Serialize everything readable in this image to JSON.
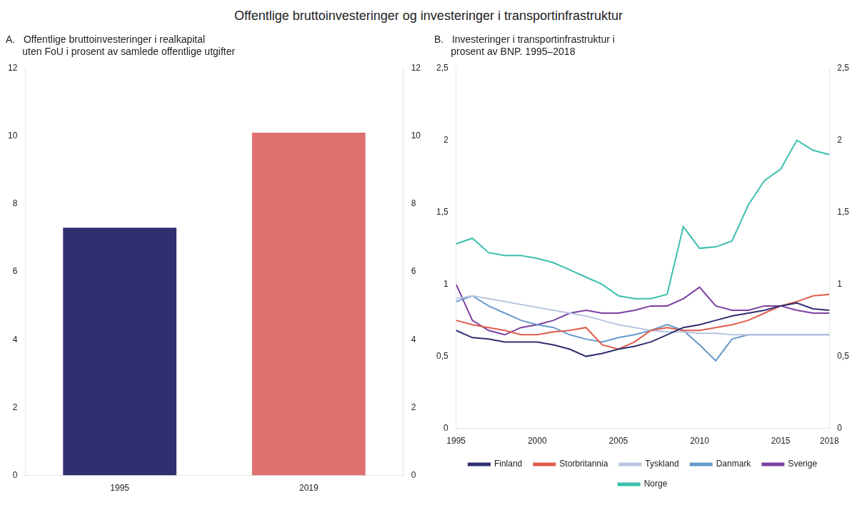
{
  "title": "Offentlige bruttoinvesteringer og investeringer i transportinfrastruktur",
  "chart_data": [
    {
      "type": "bar",
      "title": "A.   Offentlige bruttoinvesteringer i realkapital\n      uten FoU i prosent av samlede offentlige utgifter",
      "categories": [
        "1995",
        "2019"
      ],
      "values": [
        7.3,
        10.1
      ],
      "colors": [
        "#2e3070",
        "#e07070"
      ],
      "ylim": [
        0,
        12
      ],
      "yticks": [
        0,
        2,
        4,
        6,
        8,
        10,
        12
      ],
      "y2lim": [
        0,
        12
      ],
      "y2ticks": [
        0,
        2,
        4,
        6,
        8,
        10,
        12
      ],
      "grid": false
    },
    {
      "type": "line",
      "title": "B.   Investeringer i transportinfrastruktur i\n      prosent av BNP. 1995–2018",
      "x": [
        1995,
        1996,
        1997,
        1998,
        1999,
        2000,
        2001,
        2002,
        2003,
        2004,
        2005,
        2006,
        2007,
        2008,
        2009,
        2010,
        2011,
        2012,
        2013,
        2014,
        2015,
        2016,
        2017,
        2018
      ],
      "series": [
        {
          "name": "Finland",
          "color": "#2e3070",
          "values": [
            0.68,
            0.63,
            0.62,
            0.6,
            0.6,
            0.6,
            0.58,
            0.55,
            0.5,
            0.52,
            0.55,
            0.57,
            0.6,
            0.65,
            0.7,
            0.72,
            0.75,
            0.78,
            0.8,
            0.82,
            0.85,
            0.87,
            0.83,
            0.82
          ]
        },
        {
          "name": "Storbritannia",
          "color": "#e05c4b",
          "values": [
            0.75,
            0.72,
            0.7,
            0.68,
            0.65,
            0.65,
            0.67,
            0.68,
            0.7,
            0.58,
            0.55,
            0.6,
            0.68,
            0.7,
            0.68,
            0.68,
            0.7,
            0.72,
            0.75,
            0.8,
            0.85,
            0.88,
            0.92,
            0.93
          ]
        },
        {
          "name": "Tyskland",
          "color": "#b8c4e0",
          "values": [
            0.9,
            0.92,
            0.9,
            0.88,
            0.86,
            0.84,
            0.82,
            0.8,
            0.78,
            0.75,
            0.72,
            0.7,
            0.68,
            0.67,
            0.67,
            0.66,
            0.66,
            0.65,
            0.65,
            0.65,
            0.65,
            0.65,
            0.65,
            0.65
          ]
        },
        {
          "name": "Danmark",
          "color": "#6699cc",
          "values": [
            0.88,
            0.92,
            0.85,
            0.8,
            0.75,
            0.72,
            0.7,
            0.65,
            0.62,
            0.6,
            0.63,
            0.65,
            0.68,
            0.72,
            0.68,
            0.58,
            0.47,
            0.62,
            0.65,
            0.65,
            0.65,
            0.65,
            0.65,
            0.65
          ]
        },
        {
          "name": "Sverige",
          "color": "#7b3fa0",
          "values": [
            1.0,
            0.75,
            0.68,
            0.65,
            0.7,
            0.72,
            0.75,
            0.8,
            0.82,
            0.8,
            0.8,
            0.82,
            0.85,
            0.85,
            0.9,
            0.98,
            0.85,
            0.82,
            0.82,
            0.85,
            0.85,
            0.82,
            0.8,
            0.8
          ]
        },
        {
          "name": "Norge",
          "color": "#3bbfad",
          "values": [
            1.28,
            1.32,
            1.22,
            1.2,
            1.2,
            1.18,
            1.15,
            1.1,
            1.05,
            1.0,
            0.92,
            0.9,
            0.9,
            0.93,
            1.4,
            1.25,
            1.26,
            1.3,
            1.55,
            1.72,
            1.8,
            2.0,
            1.93,
            1.9
          ]
        }
      ],
      "xlim": [
        1995,
        2018
      ],
      "xticks": [
        1995,
        2000,
        2005,
        2010,
        2015,
        2018
      ],
      "ylim": [
        0,
        2.5
      ],
      "yticks": [
        0,
        {
          "value": 0.5,
          "label": "0,5"
        },
        1,
        {
          "value": 1.5,
          "label": "1,5"
        },
        2,
        {
          "value": 2.5,
          "label": "2,5"
        }
      ],
      "y2lim": [
        0,
        2.5
      ],
      "y2ticks": [
        0,
        {
          "value": 0.5,
          "label": "0,5"
        },
        1,
        {
          "value": 1.5,
          "label": "1,5"
        },
        2,
        {
          "value": 2.5,
          "label": "2,5"
        }
      ],
      "grid": false,
      "legend": "bottom"
    }
  ]
}
